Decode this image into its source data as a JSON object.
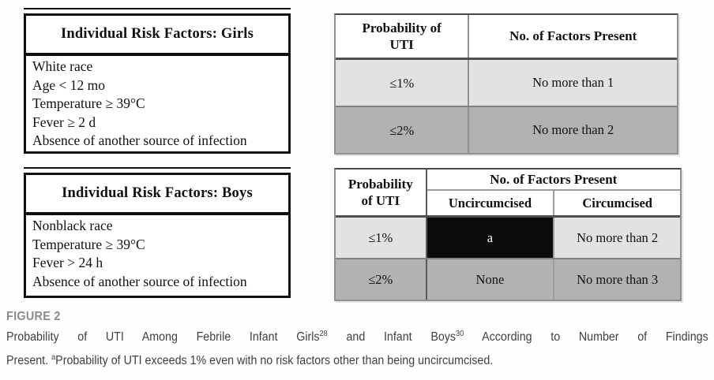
{
  "figure": {
    "label": "FIGURE 2",
    "caption_line1": [
      "Probability of UTI Among Febrile Infant Girls",
      "28",
      " and Infant Boys",
      "30",
      " According to Number of Findings"
    ],
    "caption_line2": [
      "Present. ",
      "a",
      "Probability of UTI exceeds 1% even with no risk factors other than being uncircumcised."
    ]
  },
  "girls_risk_table": {
    "title": "Individual Risk Factors: Girls",
    "factors": [
      "White race",
      "Age < 12 mo",
      "Temperature ≥ 39°C",
      "Fever ≥ 2 d",
      "Absence of another source of infection"
    ]
  },
  "boys_risk_table": {
    "title": "Individual Risk Factors: Boys",
    "factors": [
      "Nonblack race",
      "Temperature ≥ 39°C",
      "Fever > 24 h",
      "Absence of another source of infection"
    ]
  },
  "girls_probability_table": {
    "col1_header_lines": [
      "Probability of",
      "UTI"
    ],
    "col2_header": "No. of Factors Present",
    "rows": [
      {
        "probability": "≤1%",
        "factors": "No more than 1"
      },
      {
        "probability": "≤2%",
        "factors": "No more than 2"
      }
    ]
  },
  "boys_probability_table": {
    "col1_header_lines": [
      "Probability",
      "of UTI"
    ],
    "group_header": "No. of Factors Present",
    "sub_headers": [
      "Uncircumcised",
      "Circumcised"
    ],
    "rows": [
      {
        "probability": "≤1%",
        "uncircumcised": "a",
        "circumcised": "No more than 2"
      },
      {
        "probability": "≤2%",
        "uncircumcised": "None",
        "circumcised": "No more than 3"
      }
    ]
  },
  "colors": {
    "row_light": "#e2e2e2",
    "row_dark": "#b2b2b2",
    "highlight_cell_bg": "#0c0c0c",
    "highlight_cell_text": "#ffffff",
    "border_dark": "#4f4f4f",
    "border_gray": "#8f8f8f",
    "risk_table_border": "#101010",
    "figure_label_color": "#8c8c8c",
    "caption_text_color": "#3f3f3f"
  }
}
